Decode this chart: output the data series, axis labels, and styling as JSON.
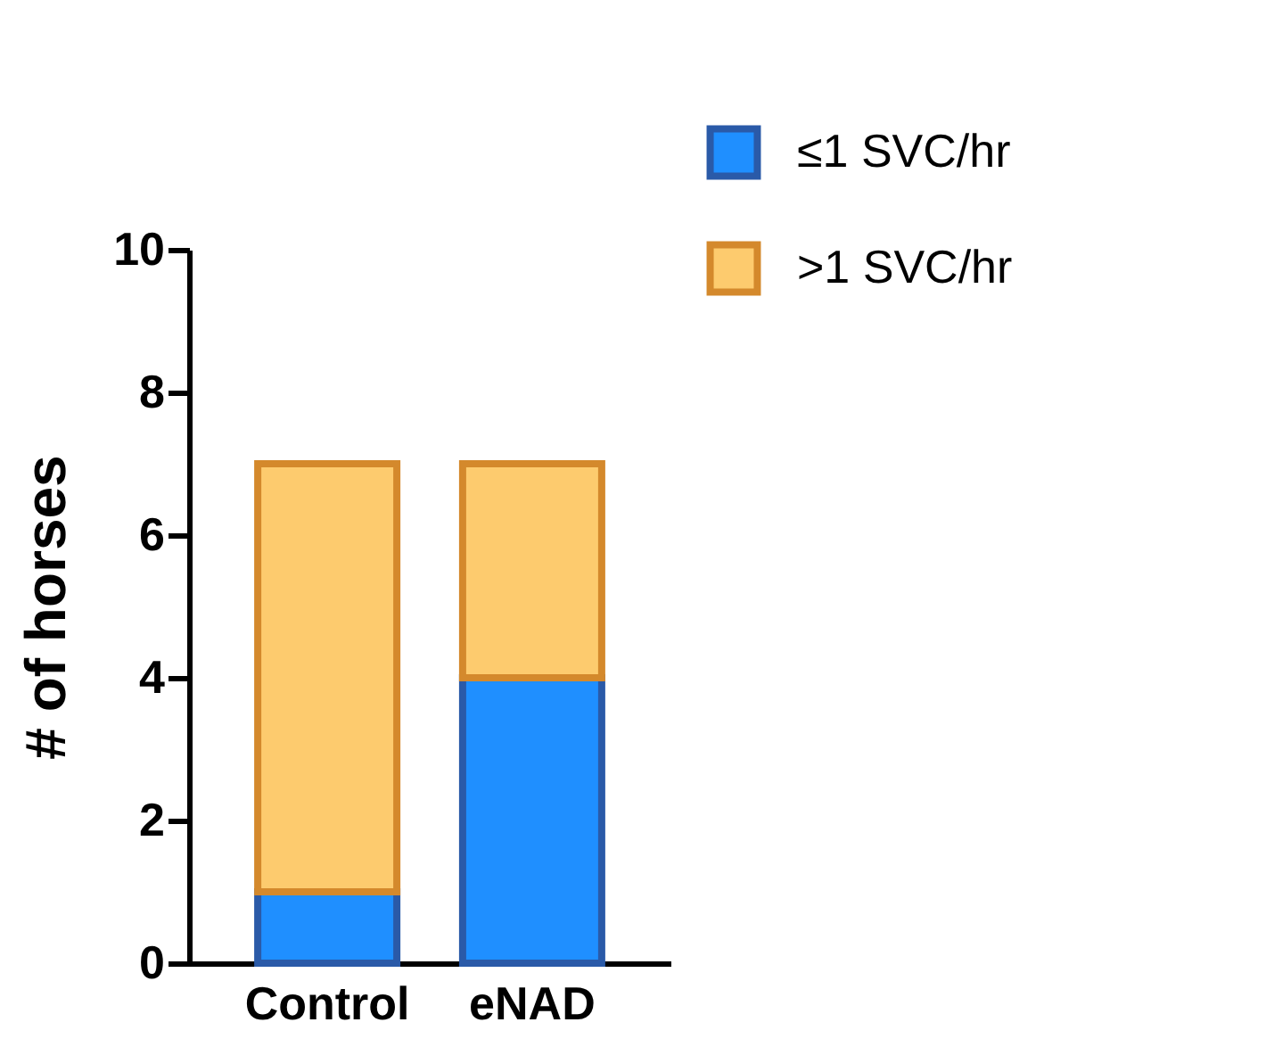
{
  "chart_data": {
    "type": "bar",
    "ylabel": "# of horses",
    "categories": [
      "Control",
      "eNAD"
    ],
    "stacked": true,
    "series": [
      {
        "name": "≤1 SVC/hr",
        "color": "#1f8fff",
        "values": [
          1,
          4
        ]
      },
      {
        "name": ">1 SVC/hr",
        "color": "#fdcb6e",
        "values": [
          6,
          3
        ]
      }
    ],
    "ylim": [
      0,
      10
    ],
    "yticks": [
      0,
      2,
      4,
      6,
      8,
      10
    ],
    "grid": false,
    "legend": "top right"
  }
}
